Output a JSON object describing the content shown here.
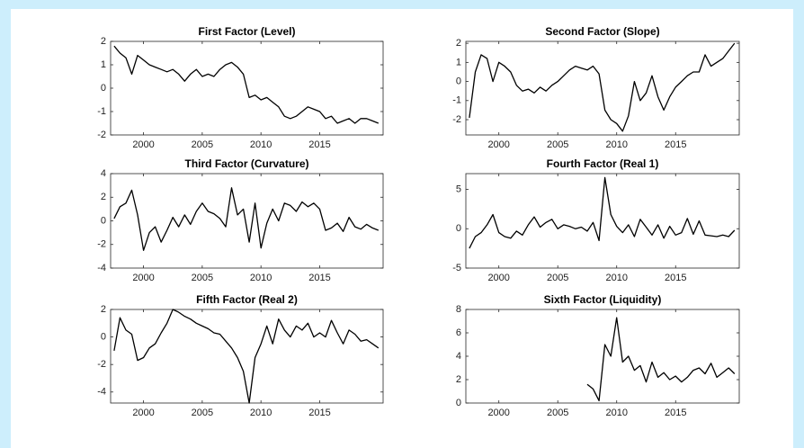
{
  "chart_data": [
    {
      "type": "line",
      "title": "First Factor (Level)",
      "xlim": [
        1997.2,
        2020.4
      ],
      "xticks": [
        2000,
        2005,
        2010,
        2015
      ],
      "ylim": [
        -2,
        2
      ],
      "yticks": [
        -2,
        -1,
        0,
        1,
        2
      ],
      "color": "#000000",
      "x": [
        1997.5,
        1998,
        1998.5,
        1999,
        1999.5,
        2000,
        2000.5,
        2001,
        2001.5,
        2002,
        2002.5,
        2003,
        2003.5,
        2004,
        2004.5,
        2005,
        2005.5,
        2006,
        2006.5,
        2007,
        2007.5,
        2008,
        2008.5,
        2009,
        2009.5,
        2010,
        2010.5,
        2011,
        2011.5,
        2012,
        2012.5,
        2013,
        2013.5,
        2014,
        2014.5,
        2015,
        2015.5,
        2016,
        2016.5,
        2017,
        2017.5,
        2018,
        2018.5,
        2019,
        2019.5,
        2020
      ],
      "values": [
        1.8,
        1.5,
        1.3,
        0.6,
        1.4,
        1.2,
        1.0,
        0.9,
        0.8,
        0.7,
        0.8,
        0.6,
        0.3,
        0.6,
        0.8,
        0.5,
        0.6,
        0.5,
        0.8,
        1.0,
        1.1,
        0.9,
        0.6,
        -0.4,
        -0.3,
        -0.5,
        -0.4,
        -0.6,
        -0.8,
        -1.2,
        -1.3,
        -1.2,
        -1.0,
        -0.8,
        -0.9,
        -1.0,
        -1.3,
        -1.2,
        -1.5,
        -1.4,
        -1.3,
        -1.5,
        -1.3,
        -1.3,
        -1.4,
        -1.5
      ]
    },
    {
      "type": "line",
      "title": "Second Factor (Slope)",
      "xlim": [
        1997.2,
        2020.4
      ],
      "xticks": [
        2000,
        2005,
        2010,
        2015
      ],
      "ylim": [
        -2.8,
        2.1
      ],
      "yticks": [
        -2,
        -1,
        0,
        1,
        2
      ],
      "color": "#000000",
      "x": [
        1997.5,
        1998,
        1998.5,
        1999,
        1999.5,
        2000,
        2000.5,
        2001,
        2001.5,
        2002,
        2002.5,
        2003,
        2003.5,
        2004,
        2004.5,
        2005,
        2005.5,
        2006,
        2006.5,
        2007,
        2007.5,
        2008,
        2008.5,
        2009,
        2009.5,
        2010,
        2010.5,
        2011,
        2011.5,
        2012,
        2012.5,
        2013,
        2013.5,
        2014,
        2014.5,
        2015,
        2015.5,
        2016,
        2016.5,
        2017,
        2017.5,
        2018,
        2018.5,
        2019,
        2019.5,
        2020
      ],
      "values": [
        -1.9,
        0.5,
        1.4,
        1.2,
        0.0,
        1.0,
        0.8,
        0.5,
        -0.2,
        -0.5,
        -0.4,
        -0.6,
        -0.3,
        -0.5,
        -0.2,
        0.0,
        0.3,
        0.6,
        0.8,
        0.7,
        0.6,
        0.8,
        0.4,
        -1.5,
        -2.0,
        -2.2,
        -2.6,
        -1.8,
        0.0,
        -1.0,
        -0.6,
        0.3,
        -0.8,
        -1.5,
        -0.8,
        -0.3,
        0.0,
        0.3,
        0.5,
        0.5,
        1.4,
        0.8,
        1.0,
        1.2,
        1.6,
        2.0
      ]
    },
    {
      "type": "line",
      "title": "Third Factor (Curvature)",
      "xlim": [
        1997.2,
        2020.4
      ],
      "xticks": [
        2000,
        2005,
        2010,
        2015
      ],
      "ylim": [
        -4,
        4
      ],
      "yticks": [
        -4,
        -2,
        0,
        2,
        4
      ],
      "color": "#000000",
      "x": [
        1997.5,
        1998,
        1998.5,
        1999,
        1999.5,
        2000,
        2000.5,
        2001,
        2001.5,
        2002,
        2002.5,
        2003,
        2003.5,
        2004,
        2004.5,
        2005,
        2005.5,
        2006,
        2006.5,
        2007,
        2007.5,
        2008,
        2008.5,
        2009,
        2009.5,
        2010,
        2010.5,
        2011,
        2011.5,
        2012,
        2012.5,
        2013,
        2013.5,
        2014,
        2014.5,
        2015,
        2015.5,
        2016,
        2016.5,
        2017,
        2017.5,
        2018,
        2018.5,
        2019,
        2019.5,
        2020
      ],
      "values": [
        0.2,
        1.2,
        1.5,
        2.6,
        0.5,
        -2.5,
        -1.0,
        -0.5,
        -1.8,
        -0.8,
        0.3,
        -0.5,
        0.5,
        -0.3,
        0.8,
        1.5,
        0.8,
        0.6,
        0.2,
        -0.5,
        2.8,
        0.5,
        1.0,
        -1.8,
        1.5,
        -2.3,
        -0.2,
        1.0,
        0.0,
        1.5,
        1.3,
        0.8,
        1.6,
        1.2,
        1.5,
        1.0,
        -0.8,
        -0.6,
        -0.2,
        -0.9,
        0.3,
        -0.5,
        -0.7,
        -0.3,
        -0.6,
        -0.8
      ]
    },
    {
      "type": "line",
      "title": "Fourth Factor (Real 1)",
      "xlim": [
        1997.2,
        2020.4
      ],
      "xticks": [
        2000,
        2005,
        2010,
        2015
      ],
      "ylim": [
        -5,
        7
      ],
      "yticks": [
        -5,
        0,
        5
      ],
      "color": "#000000",
      "x": [
        1997.5,
        1998,
        1998.5,
        1999,
        1999.5,
        2000,
        2000.5,
        2001,
        2001.5,
        2002,
        2002.5,
        2003,
        2003.5,
        2004,
        2004.5,
        2005,
        2005.5,
        2006,
        2006.5,
        2007,
        2007.5,
        2008,
        2008.5,
        2009,
        2009.5,
        2010,
        2010.5,
        2011,
        2011.5,
        2012,
        2012.5,
        2013,
        2013.5,
        2014,
        2014.5,
        2015,
        2015.5,
        2016,
        2016.5,
        2017,
        2017.5,
        2018,
        2018.5,
        2019,
        2019.5,
        2020
      ],
      "values": [
        -2.5,
        -1.0,
        -0.5,
        0.5,
        1.8,
        -0.5,
        -1.0,
        -1.2,
        -0.3,
        -0.8,
        0.5,
        1.5,
        0.2,
        0.8,
        1.2,
        0.0,
        0.5,
        0.3,
        0.0,
        0.2,
        -0.3,
        0.8,
        -1.5,
        6.5,
        1.8,
        0.3,
        -0.5,
        0.5,
        -1.0,
        1.2,
        0.2,
        -0.8,
        0.5,
        -1.2,
        0.3,
        -0.8,
        -0.5,
        1.3,
        -0.7,
        1.0,
        -0.8,
        -0.9,
        -1.0,
        -0.8,
        -1.0,
        -0.2
      ]
    },
    {
      "type": "line",
      "title": "Fifth Factor (Real 2)",
      "xlim": [
        1997.2,
        2020.4
      ],
      "xticks": [
        2000,
        2005,
        2010,
        2015
      ],
      "ylim": [
        -4.8,
        2
      ],
      "yticks": [
        -4,
        -2,
        0,
        2
      ],
      "color": "#000000",
      "x": [
        1997.5,
        1998,
        1998.5,
        1999,
        1999.5,
        2000,
        2000.5,
        2001,
        2001.5,
        2002,
        2002.5,
        2003,
        2003.5,
        2004,
        2004.5,
        2005,
        2005.5,
        2006,
        2006.5,
        2007,
        2007.5,
        2008,
        2008.5,
        2009,
        2009.5,
        2010,
        2010.5,
        2011,
        2011.5,
        2012,
        2012.5,
        2013,
        2013.5,
        2014,
        2014.5,
        2015,
        2015.5,
        2016,
        2016.5,
        2017,
        2017.5,
        2018,
        2018.5,
        2019,
        2019.5,
        2020
      ],
      "values": [
        -1.0,
        1.4,
        0.5,
        0.2,
        -1.7,
        -1.5,
        -0.8,
        -0.5,
        0.3,
        1.0,
        2.0,
        1.8,
        1.5,
        1.3,
        1.0,
        0.8,
        0.6,
        0.3,
        0.2,
        -0.3,
        -0.8,
        -1.5,
        -2.5,
        -4.8,
        -1.5,
        -0.5,
        0.8,
        -0.5,
        1.3,
        0.5,
        0.0,
        0.8,
        0.5,
        1.0,
        0.0,
        0.3,
        0.0,
        1.2,
        0.3,
        -0.5,
        0.5,
        0.2,
        -0.3,
        -0.2,
        -0.5,
        -0.8
      ]
    },
    {
      "type": "line",
      "title": "Sixth Factor (Liquidity)",
      "xlim": [
        1997.2,
        2020.4
      ],
      "xticks": [
        2000,
        2005,
        2010,
        2015
      ],
      "ylim": [
        0,
        8
      ],
      "yticks": [
        0,
        2,
        4,
        6,
        8
      ],
      "color": "#000000",
      "x": [
        2007.5,
        2008,
        2008.5,
        2009,
        2009.5,
        2010,
        2010.5,
        2011,
        2011.5,
        2012,
        2012.5,
        2013,
        2013.5,
        2014,
        2014.5,
        2015,
        2015.5,
        2016,
        2016.5,
        2017,
        2017.5,
        2018,
        2018.5,
        2019,
        2019.5,
        2020
      ],
      "values": [
        1.6,
        1.2,
        0.2,
        5.0,
        4.0,
        7.3,
        3.5,
        4.0,
        2.8,
        3.2,
        1.8,
        3.5,
        2.2,
        2.6,
        2.0,
        2.3,
        1.8,
        2.2,
        2.8,
        3.0,
        2.5,
        3.4,
        2.2,
        2.6,
        3.0,
        2.5
      ]
    }
  ]
}
